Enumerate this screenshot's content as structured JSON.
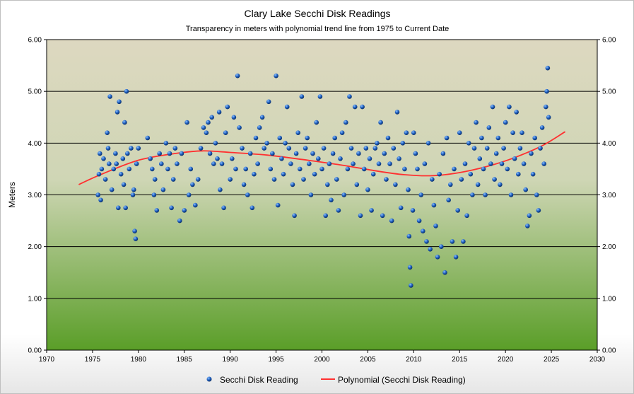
{
  "chart_data": {
    "type": "scatter",
    "title": "Clary Lake Secchi Disk Readings",
    "subtitle": "Transparency in meters with polynomial trend line from 1975 to Current Date",
    "ylabel": "Meters",
    "xlabel": "",
    "xlim": [
      1970,
      2030
    ],
    "ylim": [
      0,
      6
    ],
    "x_ticks": [
      "1970",
      "1975",
      "1980",
      "1985",
      "1990",
      "1995",
      "2000",
      "2005",
      "2010",
      "2015",
      "2020",
      "2025",
      "2030"
    ],
    "y_ticks": [
      "0.00",
      "1.00",
      "2.00",
      "3.00",
      "4.00",
      "5.00",
      "6.00"
    ],
    "grid": true,
    "legend_position": "bottom",
    "colors": {
      "points": "#1f5fbf",
      "trend": "#ff3030",
      "plot_top": "#ddd8c0",
      "plot_bottom": "#5a9e28"
    },
    "series": [
      {
        "name": "Secchi Disk Reading",
        "kind": "scatter",
        "points": [
          [
            1975.6,
            3.0
          ],
          [
            1975.7,
            3.4
          ],
          [
            1975.8,
            3.8
          ],
          [
            1975.9,
            2.9
          ],
          [
            1976.0,
            3.5
          ],
          [
            1976.2,
            3.7
          ],
          [
            1976.4,
            3.3
          ],
          [
            1976.6,
            4.2
          ],
          [
            1976.7,
            3.9
          ],
          [
            1976.8,
            3.6
          ],
          [
            1976.9,
            4.9
          ],
          [
            1977.1,
            3.1
          ],
          [
            1977.3,
            3.5
          ],
          [
            1977.5,
            3.8
          ],
          [
            1977.6,
            3.6
          ],
          [
            1977.7,
            4.6
          ],
          [
            1977.8,
            2.75
          ],
          [
            1977.9,
            4.8
          ],
          [
            1978.1,
            3.4
          ],
          [
            1978.3,
            3.7
          ],
          [
            1978.4,
            3.2
          ],
          [
            1978.5,
            4.4
          ],
          [
            1978.6,
            2.75
          ],
          [
            1978.7,
            5.0
          ],
          [
            1978.8,
            3.8
          ],
          [
            1979.0,
            3.5
          ],
          [
            1979.2,
            3.9
          ],
          [
            1979.4,
            3.0
          ],
          [
            1979.5,
            3.1
          ],
          [
            1979.6,
            2.3
          ],
          [
            1979.7,
            2.15
          ],
          [
            1979.8,
            3.6
          ],
          [
            1980.0,
            3.9
          ],
          [
            1981.0,
            4.1
          ],
          [
            1981.3,
            3.7
          ],
          [
            1981.5,
            3.5
          ],
          [
            1981.7,
            3.0
          ],
          [
            1981.8,
            3.3
          ],
          [
            1982.0,
            2.7
          ],
          [
            1982.3,
            3.8
          ],
          [
            1982.5,
            3.6
          ],
          [
            1982.7,
            3.1
          ],
          [
            1983.0,
            4.0
          ],
          [
            1983.2,
            3.5
          ],
          [
            1983.4,
            3.8
          ],
          [
            1983.6,
            2.75
          ],
          [
            1983.8,
            3.3
          ],
          [
            1984.0,
            3.9
          ],
          [
            1984.2,
            3.6
          ],
          [
            1984.5,
            2.5
          ],
          [
            1984.7,
            3.8
          ],
          [
            1985.0,
            2.7
          ],
          [
            1985.3,
            4.4
          ],
          [
            1985.5,
            3.0
          ],
          [
            1985.7,
            3.5
          ],
          [
            1985.9,
            3.2
          ],
          [
            1986.2,
            2.8
          ],
          [
            1986.5,
            3.3
          ],
          [
            1986.8,
            3.9
          ],
          [
            1987.1,
            4.3
          ],
          [
            1987.4,
            4.2
          ],
          [
            1987.6,
            4.4
          ],
          [
            1987.8,
            3.8
          ],
          [
            1988.0,
            4.5
          ],
          [
            1988.2,
            3.6
          ],
          [
            1988.4,
            4.0
          ],
          [
            1988.6,
            3.7
          ],
          [
            1988.8,
            4.6
          ],
          [
            1988.9,
            3.1
          ],
          [
            1989.1,
            3.6
          ],
          [
            1989.3,
            2.75
          ],
          [
            1989.5,
            4.2
          ],
          [
            1989.7,
            4.7
          ],
          [
            1990.0,
            3.3
          ],
          [
            1990.2,
            3.7
          ],
          [
            1990.4,
            4.5
          ],
          [
            1990.6,
            3.5
          ],
          [
            1990.8,
            5.3
          ],
          [
            1991.0,
            4.3
          ],
          [
            1991.3,
            3.9
          ],
          [
            1991.5,
            3.2
          ],
          [
            1991.7,
            3.5
          ],
          [
            1991.9,
            3.0
          ],
          [
            1992.2,
            3.8
          ],
          [
            1992.4,
            2.75
          ],
          [
            1992.6,
            3.4
          ],
          [
            1992.8,
            4.1
          ],
          [
            1993.0,
            3.6
          ],
          [
            1993.2,
            4.3
          ],
          [
            1993.5,
            4.5
          ],
          [
            1993.7,
            3.9
          ],
          [
            1994.0,
            4.0
          ],
          [
            1994.2,
            4.8
          ],
          [
            1994.4,
            3.5
          ],
          [
            1994.6,
            3.8
          ],
          [
            1994.8,
            3.3
          ],
          [
            1995.0,
            5.3
          ],
          [
            1995.2,
            2.8
          ],
          [
            1995.4,
            4.1
          ],
          [
            1995.6,
            3.7
          ],
          [
            1995.8,
            3.4
          ],
          [
            1996.0,
            4.0
          ],
          [
            1996.2,
            4.7
          ],
          [
            1996.4,
            3.9
          ],
          [
            1996.6,
            3.6
          ],
          [
            1996.8,
            3.2
          ],
          [
            1997.0,
            2.6
          ],
          [
            1997.2,
            3.8
          ],
          [
            1997.4,
            4.2
          ],
          [
            1997.6,
            3.5
          ],
          [
            1997.8,
            4.9
          ],
          [
            1998.0,
            3.3
          ],
          [
            1998.2,
            3.9
          ],
          [
            1998.4,
            4.1
          ],
          [
            1998.6,
            3.6
          ],
          [
            1998.8,
            3.0
          ],
          [
            1999.0,
            3.8
          ],
          [
            1999.2,
            3.4
          ],
          [
            1999.4,
            4.4
          ],
          [
            1999.6,
            3.7
          ],
          [
            1999.8,
            4.9
          ],
          [
            2000.0,
            3.5
          ],
          [
            2000.2,
            3.9
          ],
          [
            2000.4,
            2.6
          ],
          [
            2000.6,
            3.2
          ],
          [
            2000.8,
            3.6
          ],
          [
            2001.0,
            2.9
          ],
          [
            2001.2,
            3.8
          ],
          [
            2001.4,
            4.1
          ],
          [
            2001.6,
            3.3
          ],
          [
            2001.8,
            2.7
          ],
          [
            2002.0,
            3.7
          ],
          [
            2002.2,
            4.2
          ],
          [
            2002.4,
            3.0
          ],
          [
            2002.6,
            4.4
          ],
          [
            2002.8,
            3.5
          ],
          [
            2003.0,
            4.9
          ],
          [
            2003.2,
            3.9
          ],
          [
            2003.4,
            3.6
          ],
          [
            2003.6,
            4.7
          ],
          [
            2003.8,
            3.2
          ],
          [
            2004.0,
            3.8
          ],
          [
            2004.2,
            2.6
          ],
          [
            2004.4,
            4.7
          ],
          [
            2004.6,
            3.5
          ],
          [
            2004.8,
            3.9
          ],
          [
            2005.0,
            3.1
          ],
          [
            2005.2,
            3.7
          ],
          [
            2005.4,
            2.7
          ],
          [
            2005.6,
            3.4
          ],
          [
            2005.8,
            3.9
          ],
          [
            2006.0,
            4.0
          ],
          [
            2006.2,
            3.6
          ],
          [
            2006.4,
            4.4
          ],
          [
            2006.6,
            2.6
          ],
          [
            2006.8,
            3.8
          ],
          [
            2007.0,
            3.3
          ],
          [
            2007.2,
            4.1
          ],
          [
            2007.4,
            3.6
          ],
          [
            2007.6,
            2.5
          ],
          [
            2007.8,
            3.9
          ],
          [
            2008.0,
            3.2
          ],
          [
            2008.2,
            4.6
          ],
          [
            2008.4,
            3.7
          ],
          [
            2008.6,
            2.75
          ],
          [
            2008.8,
            4.0
          ],
          [
            2009.0,
            3.5
          ],
          [
            2009.2,
            4.2
          ],
          [
            2009.4,
            3.1
          ],
          [
            2009.5,
            2.2
          ],
          [
            2009.6,
            1.6
          ],
          [
            2009.7,
            1.25
          ],
          [
            2009.9,
            2.7
          ],
          [
            2010.0,
            4.2
          ],
          [
            2010.2,
            3.8
          ],
          [
            2010.4,
            3.5
          ],
          [
            2010.6,
            2.5
          ],
          [
            2010.8,
            3.0
          ],
          [
            2011.0,
            2.3
          ],
          [
            2011.2,
            3.6
          ],
          [
            2011.4,
            2.1
          ],
          [
            2011.6,
            4.0
          ],
          [
            2011.8,
            1.95
          ],
          [
            2012.0,
            3.3
          ],
          [
            2012.2,
            2.8
          ],
          [
            2012.4,
            2.4
          ],
          [
            2012.6,
            1.8
          ],
          [
            2012.8,
            3.4
          ],
          [
            2013.0,
            2.0
          ],
          [
            2013.2,
            3.8
          ],
          [
            2013.4,
            1.5
          ],
          [
            2013.6,
            4.1
          ],
          [
            2013.8,
            2.9
          ],
          [
            2014.0,
            3.2
          ],
          [
            2014.2,
            2.1
          ],
          [
            2014.4,
            3.5
          ],
          [
            2014.6,
            1.8
          ],
          [
            2014.8,
            2.7
          ],
          [
            2015.0,
            4.2
          ],
          [
            2015.2,
            3.3
          ],
          [
            2015.4,
            2.1
          ],
          [
            2015.6,
            3.6
          ],
          [
            2015.8,
            2.6
          ],
          [
            2016.0,
            4.0
          ],
          [
            2016.2,
            3.4
          ],
          [
            2016.4,
            3.0
          ],
          [
            2016.6,
            3.9
          ],
          [
            2016.8,
            4.4
          ],
          [
            2017.0,
            3.2
          ],
          [
            2017.2,
            3.7
          ],
          [
            2017.4,
            4.1
          ],
          [
            2017.6,
            3.5
          ],
          [
            2017.8,
            3.0
          ],
          [
            2018.0,
            3.9
          ],
          [
            2018.2,
            4.3
          ],
          [
            2018.4,
            3.6
          ],
          [
            2018.6,
            4.7
          ],
          [
            2018.8,
            3.3
          ],
          [
            2019.0,
            3.8
          ],
          [
            2019.2,
            4.1
          ],
          [
            2019.4,
            3.2
          ],
          [
            2019.6,
            3.6
          ],
          [
            2019.8,
            3.9
          ],
          [
            2020.0,
            4.4
          ],
          [
            2020.2,
            3.5
          ],
          [
            2020.4,
            4.7
          ],
          [
            2020.6,
            3.0
          ],
          [
            2020.8,
            4.2
          ],
          [
            2021.0,
            3.7
          ],
          [
            2021.2,
            4.6
          ],
          [
            2021.4,
            3.4
          ],
          [
            2021.6,
            3.9
          ],
          [
            2021.8,
            4.2
          ],
          [
            2022.0,
            3.6
          ],
          [
            2022.2,
            3.1
          ],
          [
            2022.4,
            2.4
          ],
          [
            2022.6,
            2.6
          ],
          [
            2022.8,
            3.8
          ],
          [
            2023.0,
            3.4
          ],
          [
            2023.2,
            4.1
          ],
          [
            2023.4,
            3.0
          ],
          [
            2023.6,
            2.7
          ],
          [
            2023.8,
            3.9
          ],
          [
            2024.0,
            4.3
          ],
          [
            2024.2,
            3.6
          ],
          [
            2024.4,
            4.7
          ],
          [
            2024.5,
            5.0
          ],
          [
            2024.6,
            5.45
          ],
          [
            2024.7,
            4.5
          ]
        ]
      },
      {
        "name": "Polynomial (Secchi Disk Reading)",
        "kind": "line",
        "points": [
          [
            1973.5,
            3.2
          ],
          [
            1976,
            3.4
          ],
          [
            1980,
            3.67
          ],
          [
            1984,
            3.8
          ],
          [
            1987,
            3.85
          ],
          [
            1990,
            3.82
          ],
          [
            1994,
            3.77
          ],
          [
            1998,
            3.68
          ],
          [
            2002,
            3.58
          ],
          [
            2006,
            3.46
          ],
          [
            2009,
            3.39
          ],
          [
            2012,
            3.37
          ],
          [
            2015,
            3.43
          ],
          [
            2018,
            3.55
          ],
          [
            2021,
            3.72
          ],
          [
            2024,
            3.95
          ],
          [
            2026.5,
            4.22
          ]
        ]
      }
    ]
  }
}
